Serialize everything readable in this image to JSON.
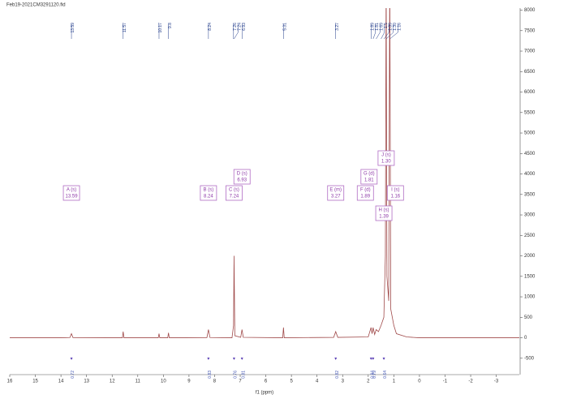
{
  "chart_data": {
    "type": "line",
    "title": "Feb19-2021CM3291120.fid",
    "xlabel": "f1 (ppm)",
    "color": "#a04a4a",
    "xlim": [
      16,
      -3.9
    ],
    "ylim": [
      -900,
      8050
    ],
    "xticks": [
      16,
      15,
      14,
      13,
      12,
      11,
      10,
      9,
      8,
      7,
      6,
      5,
      4,
      3,
      2,
      1,
      0,
      -1,
      -2,
      -3
    ],
    "yticks": [
      -500,
      0,
      500,
      1000,
      1500,
      2000,
      2500,
      3000,
      3500,
      4000,
      4500,
      5000,
      5500,
      6000,
      6500,
      7000,
      7500,
      8000
    ],
    "x": [
      16,
      14,
      13.65,
      13.59,
      13.53,
      11.6,
      11.57,
      11.54,
      10.2,
      10.17,
      10.14,
      9.83,
      9.8,
      9.77,
      8.3,
      8.24,
      8.18,
      7.32,
      7.26,
      7.24,
      7.21,
      6.98,
      6.93,
      6.88,
      5.34,
      5.31,
      5.28,
      3.35,
      3.27,
      3.19,
      2.0,
      1.89,
      1.85,
      1.81,
      1.75,
      1.69,
      1.6,
      1.5,
      1.39,
      1.33,
      1.3,
      1.27,
      1.2,
      1.16,
      1.12,
      1.0,
      0.9,
      0.5,
      0,
      -3.9
    ],
    "values": [
      0,
      0,
      5,
      100,
      5,
      0,
      150,
      0,
      0,
      100,
      0,
      0,
      120,
      0,
      5,
      200,
      5,
      0,
      300,
      2000,
      50,
      10,
      200,
      10,
      0,
      250,
      0,
      10,
      150,
      10,
      20,
      250,
      100,
      250,
      80,
      200,
      150,
      300,
      500,
      2000,
      9000,
      1500,
      900,
      9000,
      700,
      300,
      100,
      20,
      0,
      0
    ],
    "peak_labels": [
      13.59,
      11.57,
      10.17,
      9.8,
      8.24,
      7.26,
      7.24,
      6.93,
      5.31,
      3.27,
      1.89,
      1.81,
      1.69,
      1.5,
      1.39,
      {
        "value": 1.3,
        "label": "1.30"
      },
      1.16
    ],
    "multiplets": [
      {
        "label": "A (s)",
        "shift": 13.59
      },
      {
        "label": "B (s)",
        "shift": 8.24
      },
      {
        "label": "C (s)",
        "shift": 7.24
      },
      {
        "label": "D (s)",
        "shift": 6.93
      },
      {
        "label": "E (m)",
        "shift": 3.27
      },
      {
        "label": "F (d)",
        "shift": 1.89
      },
      {
        "label": "G (d)",
        "shift": 1.81
      },
      {
        "label": "J (s)",
        "shift": {
          "value": 1.3,
          "label": "1.30"
        }
      },
      {
        "label": "H (s)",
        "shift": 1.39
      },
      {
        "label": "I (s)",
        "shift": 1.16
      }
    ],
    "integrals": [
      {
        "x": 13.59,
        "value": 0.72
      },
      {
        "x": 8.24,
        "value": 0.83
      },
      {
        "x": 7.24,
        "value": 0.76
      },
      {
        "x": 6.93,
        "value": 0.81
      },
      {
        "x": 3.27,
        "value": 0.82
      },
      {
        "x": 1.89,
        "value": 0.84
      },
      {
        "x": 1.81,
        "value": 0.79
      },
      {
        "x": 1.39,
        "value": 0.64
      }
    ]
  }
}
